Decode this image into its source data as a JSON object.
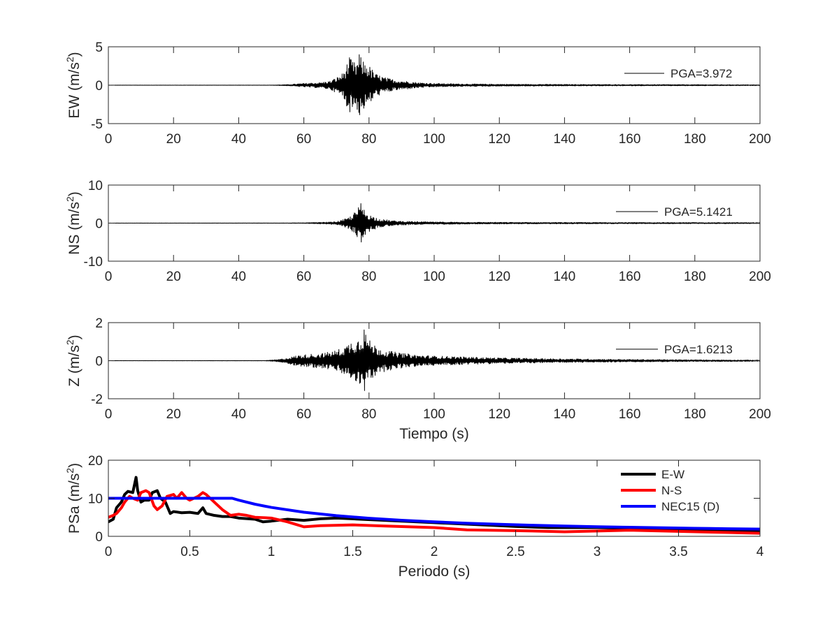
{
  "chart_data": [
    {
      "type": "line",
      "id": "ew",
      "ylabel": "EW (m/s²)",
      "ylabel_main": "EW (m/s",
      "ylabel_sup": "2",
      "ylabel_end": ")",
      "xlabel": "",
      "xlim": [
        0,
        200
      ],
      "ylim": [
        -5,
        5
      ],
      "xticks": [
        0,
        20,
        40,
        60,
        80,
        100,
        120,
        140,
        160,
        180,
        200
      ],
      "yticks": [
        -5,
        0,
        5
      ],
      "legend_position": "top-right",
      "series": [
        {
          "name": "PGA=3.972",
          "color": "#000000",
          "envelope": [
            [
              0,
              0.015
            ],
            [
              50,
              0.02
            ],
            [
              55,
              0.08
            ],
            [
              58,
              0.18
            ],
            [
              62,
              0.3
            ],
            [
              65,
              0.35
            ],
            [
              68,
              0.55
            ],
            [
              70,
              1.0
            ],
            [
              72,
              1.6
            ],
            [
              74,
              3.6
            ],
            [
              76,
              2.8
            ],
            [
              77,
              3.972
            ],
            [
              78,
              3.3
            ],
            [
              80,
              2.6
            ],
            [
              82,
              1.5
            ],
            [
              85,
              1.0
            ],
            [
              88,
              0.7
            ],
            [
              92,
              0.5
            ],
            [
              96,
              0.32
            ],
            [
              100,
              0.25
            ],
            [
              105,
              0.2
            ],
            [
              110,
              0.17
            ],
            [
              120,
              0.14
            ],
            [
              140,
              0.11
            ],
            [
              160,
              0.09
            ],
            [
              180,
              0.08
            ],
            [
              200,
              0.06
            ]
          ],
          "peak": {
            "x": 77,
            "y": 3.972
          }
        }
      ]
    },
    {
      "type": "line",
      "id": "ns",
      "ylabel": "NS (m/s²)",
      "ylabel_main": "NS (m/s",
      "ylabel_sup": "2",
      "ylabel_end": ")",
      "xlabel": "",
      "xlim": [
        0,
        200
      ],
      "ylim": [
        -10,
        10
      ],
      "xticks": [
        0,
        20,
        40,
        60,
        80,
        100,
        120,
        140,
        160,
        180,
        200
      ],
      "yticks": [
        -10,
        0,
        10
      ],
      "legend_position": "top-right",
      "series": [
        {
          "name": "PGA=5.1421",
          "color": "#000000",
          "envelope": [
            [
              0,
              0.02
            ],
            [
              55,
              0.05
            ],
            [
              60,
              0.1
            ],
            [
              65,
              0.2
            ],
            [
              70,
              0.4
            ],
            [
              72,
              0.9
            ],
            [
              74,
              1.6
            ],
            [
              76,
              3.2
            ],
            [
              77.5,
              5.1421
            ],
            [
              79,
              3.0
            ],
            [
              81,
              1.8
            ],
            [
              84,
              1.0
            ],
            [
              88,
              0.6
            ],
            [
              94,
              0.4
            ],
            [
              100,
              0.32
            ],
            [
              110,
              0.25
            ],
            [
              130,
              0.2
            ],
            [
              160,
              0.18
            ],
            [
              200,
              0.15
            ]
          ],
          "peak": {
            "x": 77.5,
            "y": 5.1421
          }
        }
      ]
    },
    {
      "type": "line",
      "id": "z",
      "ylabel": "Z (m/s²)",
      "ylabel_main": "Z (m/s",
      "ylabel_sup": "2",
      "ylabel_end": ")",
      "xlabel": "Tiempo (s)",
      "xlim": [
        0,
        200
      ],
      "ylim": [
        -2,
        2
      ],
      "xticks": [
        0,
        20,
        40,
        60,
        80,
        100,
        120,
        140,
        160,
        180,
        200
      ],
      "yticks": [
        -2,
        0,
        2
      ],
      "legend_position": "top-right",
      "series": [
        {
          "name": "PGA=1.6213",
          "color": "#000000",
          "envelope": [
            [
              0,
              0.005
            ],
            [
              48,
              0.01
            ],
            [
              52,
              0.06
            ],
            [
              55,
              0.15
            ],
            [
              58,
              0.28
            ],
            [
              62,
              0.35
            ],
            [
              66,
              0.4
            ],
            [
              70,
              0.55
            ],
            [
              73,
              0.8
            ],
            [
              75,
              1.1
            ],
            [
              77,
              1.2
            ],
            [
              78.5,
              1.6213
            ],
            [
              80,
              1.1
            ],
            [
              82,
              0.8
            ],
            [
              85,
              0.55
            ],
            [
              90,
              0.4
            ],
            [
              95,
              0.3
            ],
            [
              100,
              0.25
            ],
            [
              110,
              0.2
            ],
            [
              120,
              0.15
            ],
            [
              140,
              0.1
            ],
            [
              160,
              0.07
            ],
            [
              180,
              0.05
            ],
            [
              200,
              0.035
            ]
          ],
          "peak": {
            "x": 78.5,
            "y": 1.6213
          }
        }
      ]
    },
    {
      "type": "line",
      "id": "psa",
      "ylabel": "PSa (m/s²)",
      "ylabel_main": "PSa (m/s",
      "ylabel_sup": "2",
      "ylabel_end": ")",
      "xlabel": "Periodo (s)",
      "xlim": [
        0,
        4
      ],
      "ylim": [
        0,
        20
      ],
      "xticks": [
        0,
        0.5,
        1,
        1.5,
        2,
        2.5,
        3,
        3.5,
        4
      ],
      "yticks": [
        0,
        10,
        20
      ],
      "legend_position": "top-right",
      "series": [
        {
          "name": "E-W",
          "color": "#000000",
          "x": [
            0.0,
            0.03,
            0.05,
            0.08,
            0.1,
            0.12,
            0.15,
            0.17,
            0.18,
            0.2,
            0.22,
            0.25,
            0.27,
            0.3,
            0.32,
            0.35,
            0.38,
            0.4,
            0.45,
            0.5,
            0.55,
            0.58,
            0.6,
            0.65,
            0.7,
            0.75,
            0.8,
            0.9,
            0.95,
            1.0,
            1.1,
            1.2,
            1.3,
            1.4,
            1.5,
            1.7,
            2.0,
            2.3,
            2.5,
            2.7,
            3.0,
            3.3,
            3.5,
            3.7,
            4.0
          ],
          "y": [
            3.8,
            4.5,
            7.5,
            9.0,
            11.0,
            11.8,
            11.5,
            15.5,
            12.0,
            9.0,
            9.5,
            9.5,
            11.5,
            12.0,
            10.0,
            9.0,
            6.0,
            6.5,
            6.2,
            6.3,
            6.0,
            7.5,
            6.0,
            5.5,
            5.2,
            5.2,
            4.8,
            4.5,
            3.8,
            4.0,
            4.5,
            4.2,
            4.6,
            4.8,
            4.6,
            4.2,
            3.6,
            3.0,
            2.6,
            2.3,
            2.3,
            2.0,
            1.8,
            1.6,
            1.4
          ]
        },
        {
          "name": "N-S",
          "color": "#ff0000",
          "x": [
            0.0,
            0.03,
            0.05,
            0.08,
            0.1,
            0.13,
            0.15,
            0.18,
            0.2,
            0.23,
            0.25,
            0.28,
            0.3,
            0.33,
            0.36,
            0.4,
            0.42,
            0.45,
            0.48,
            0.5,
            0.55,
            0.58,
            0.6,
            0.65,
            0.7,
            0.75,
            0.8,
            0.85,
            0.9,
            1.0,
            1.1,
            1.2,
            1.3,
            1.5,
            1.7,
            2.0,
            2.2,
            2.5,
            2.8,
            3.0,
            3.2,
            3.5,
            3.8,
            4.0
          ],
          "y": [
            5.0,
            5.5,
            6.0,
            7.5,
            9.0,
            10.5,
            10.0,
            9.5,
            11.5,
            12.0,
            11.5,
            8.0,
            7.0,
            8.0,
            10.5,
            11.0,
            10.0,
            11.5,
            10.0,
            9.5,
            10.5,
            11.5,
            11.0,
            9.0,
            7.0,
            5.5,
            5.8,
            5.5,
            5.0,
            4.8,
            3.8,
            2.5,
            2.8,
            3.0,
            2.7,
            2.3,
            1.7,
            1.5,
            1.2,
            1.4,
            1.6,
            1.3,
            1.0,
            0.8
          ]
        },
        {
          "name": "NEC15 (D)",
          "color": "#0000ff",
          "x": [
            0.0,
            0.76,
            0.8,
            0.9,
            1.0,
            1.2,
            1.4,
            1.6,
            1.8,
            2.0,
            2.2,
            2.4,
            2.6,
            2.8,
            3.0,
            3.2,
            3.4,
            3.6,
            3.8,
            4.0
          ],
          "y": [
            10.0,
            10.0,
            9.5,
            8.44,
            7.6,
            6.33,
            5.43,
            4.75,
            4.22,
            3.8,
            3.45,
            3.17,
            2.92,
            2.71,
            2.53,
            2.38,
            2.24,
            2.11,
            2.0,
            1.9
          ]
        }
      ]
    }
  ]
}
